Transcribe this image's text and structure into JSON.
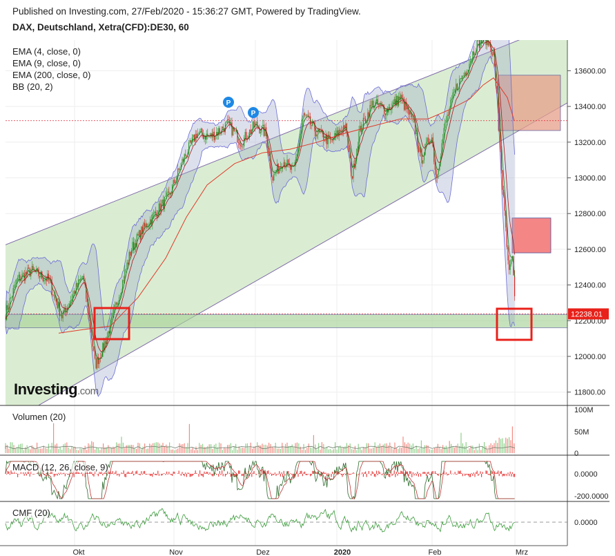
{
  "header": {
    "published": "Published on Investing.com, 27/Feb/2020 - 15:36:27 GMT, Powered by TradingView.",
    "symbol": "DAX, Deutschland, Xetra(CFD):DE30, 60"
  },
  "indicators": [
    "EMA (4, close, 0)",
    "EMA (9, close, 0)",
    "EMA (200, close, 0)",
    "BB (20, 2)"
  ],
  "panes": {
    "volume_label": "Volumen (20)",
    "macd_label": "MACD (12, 26, close, 9)",
    "cmf_label": "CMF (20)"
  },
  "logo": {
    "name": "Investing",
    "suffix": ".com"
  },
  "colors": {
    "up": "#2a9d2a",
    "down": "#d8251f",
    "channel_fill": "#d6ebcd",
    "bb": "#6b6bd6",
    "ema200": "#e03a2a",
    "price_tag": "#e8211a"
  },
  "chart_data": {
    "type": "candlestick",
    "price_axis": {
      "ticks": [
        11800,
        12000,
        12200,
        12400,
        12600,
        12800,
        13000,
        13200,
        13400,
        13600
      ],
      "tick_labels": [
        "11800.00",
        "12000.00",
        "12200.00",
        "12400.00",
        "12600.00",
        "12800.00",
        "13000.00",
        "13200.00",
        "13400.00",
        "13600.00"
      ],
      "range": [
        11740,
        13800
      ]
    },
    "last_price": {
      "value": 12238.01,
      "label": "12238.01"
    },
    "x_axis": {
      "labels": [
        "Okt",
        "Nov",
        "Dez",
        "2020",
        "Feb",
        "Mrz"
      ]
    },
    "price_path": [
      [
        0,
        12150
      ],
      [
        25,
        12430
      ],
      [
        45,
        12480
      ],
      [
        70,
        12430
      ],
      [
        90,
        12220
      ],
      [
        110,
        12380
      ],
      [
        120,
        12450
      ],
      [
        130,
        12200
      ],
      [
        138,
        11950
      ],
      [
        150,
        12050
      ],
      [
        162,
        12200
      ],
      [
        175,
        12380
      ],
      [
        190,
        12600
      ],
      [
        205,
        12700
      ],
      [
        225,
        12800
      ],
      [
        245,
        12900
      ],
      [
        265,
        13100
      ],
      [
        285,
        13250
      ],
      [
        305,
        13230
      ],
      [
        330,
        13300
      ],
      [
        350,
        13200
      ],
      [
        370,
        13300
      ],
      [
        385,
        13250
      ],
      [
        395,
        13000
      ],
      [
        410,
        13100
      ],
      [
        425,
        13030
      ],
      [
        440,
        13350
      ],
      [
        460,
        13250
      ],
      [
        480,
        13200
      ],
      [
        500,
        13300
      ],
      [
        510,
        13000
      ],
      [
        520,
        13250
      ],
      [
        540,
        13420
      ],
      [
        560,
        13380
      ],
      [
        580,
        13450
      ],
      [
        600,
        13300
      ],
      [
        610,
        13100
      ],
      [
        625,
        13250
      ],
      [
        632,
        13000
      ],
      [
        645,
        13300
      ],
      [
        660,
        13500
      ],
      [
        675,
        13600
      ],
      [
        690,
        13750
      ],
      [
        705,
        13780
      ],
      [
        715,
        13700
      ],
      [
        722,
        13350
      ],
      [
        728,
        12950
      ],
      [
        733,
        12700
      ],
      [
        737,
        12450
      ],
      [
        742,
        12550
      ],
      [
        746,
        12330
      ]
    ],
    "ema200_path": [
      [
        85,
        12130
      ],
      [
        120,
        12150
      ],
      [
        160,
        12170
      ],
      [
        200,
        12330
      ],
      [
        240,
        12550
      ],
      [
        270,
        12780
      ],
      [
        300,
        12960
      ],
      [
        340,
        13080
      ],
      [
        380,
        13140
      ],
      [
        420,
        13160
      ],
      [
        460,
        13200
      ],
      [
        500,
        13250
      ],
      [
        540,
        13290
      ],
      [
        580,
        13330
      ],
      [
        620,
        13330
      ],
      [
        650,
        13380
      ],
      [
        680,
        13440
      ],
      [
        700,
        13520
      ],
      [
        715,
        13560
      ],
      [
        735,
        13450
      ],
      [
        745,
        13320
      ]
    ],
    "channel": {
      "upper_start": [
        8,
        12625
      ],
      "upper_end": [
        822,
        13880
      ],
      "lower_start": [
        8,
        11620
      ],
      "lower_end": [
        822,
        13420
      ]
    },
    "support_level": 12238,
    "zones": [
      {
        "from_price": 12160,
        "to_price": 12235,
        "kind": "support"
      },
      {
        "from_price": 13265,
        "to_price": 13575,
        "kind": "resistance"
      },
      {
        "from_price": 12580,
        "to_price": 12775,
        "kind": "resistance-low"
      }
    ],
    "reference_line": 13320,
    "volume_axis": {
      "ticks": [
        "100M",
        "50M",
        "0"
      ]
    },
    "macd_axis": {
      "ticks": [
        "0.0000",
        "-200.0000"
      ]
    },
    "cmf_axis": {
      "ticks": [
        "0.0000"
      ]
    }
  }
}
